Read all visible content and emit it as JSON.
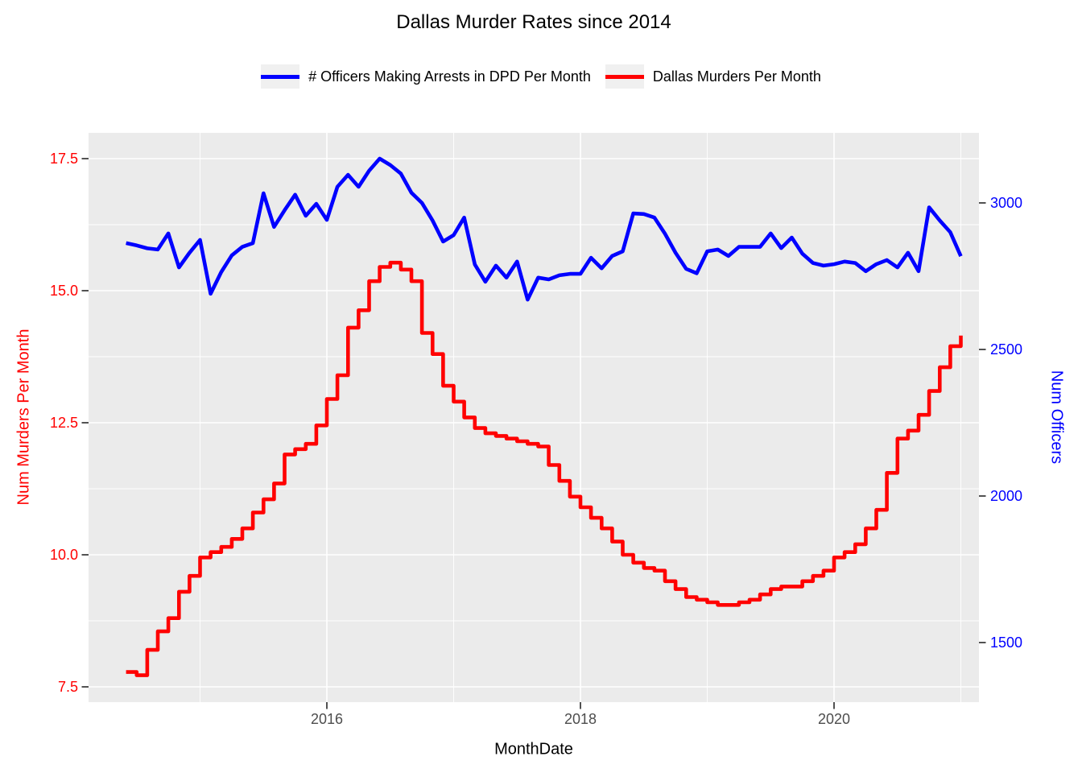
{
  "title": "Dallas Murder Rates since 2014",
  "legend": {
    "officers_label": "# Officers Making Arrests in DPD Per Month",
    "murders_label": "Dallas Murders Per Month"
  },
  "colors": {
    "murders": "#FF0000",
    "officers": "#0000FF",
    "panel_bg": "#EBEBEB",
    "gridline": "#FFFFFF",
    "tick_mark": "#333333",
    "x_tick_text": "#4d4d4d",
    "legend_key_bg": "#F0F0F0"
  },
  "axes": {
    "x": {
      "title": "MonthDate",
      "major_tick_labels": [
        "2016",
        "2018",
        "2020"
      ],
      "major_years": [
        2016,
        2018,
        2020
      ],
      "minor_years": [
        2015,
        2017,
        2019,
        2021
      ]
    },
    "y_left": {
      "title": "Num Murders Per Month",
      "tick_labels": [
        "7.5",
        "10.0",
        "12.5",
        "15.0",
        "17.5"
      ],
      "tick_values": [
        7.5,
        10.0,
        12.5,
        15.0,
        17.5
      ],
      "minor_values": [
        8.75,
        11.25,
        13.75,
        16.25
      ],
      "range": [
        7.2,
        18.0
      ]
    },
    "y_right": {
      "title": "Num Officers",
      "tick_labels": [
        "1500",
        "2000",
        "2500",
        "3000"
      ],
      "tick_values": [
        1500,
        2000,
        2500,
        3000
      ],
      "range": [
        1260,
        3290
      ]
    }
  },
  "chart_data": {
    "type": "line",
    "title": "Dallas Murder Rates since 2014",
    "xlabel": "MonthDate",
    "ylabel_left": "Num Murders Per Month",
    "ylabel_right": "Num Officers",
    "grid": true,
    "legend_position": "top",
    "x": [
      "2014-06",
      "2014-07",
      "2014-08",
      "2014-09",
      "2014-10",
      "2014-11",
      "2014-12",
      "2015-01",
      "2015-02",
      "2015-03",
      "2015-04",
      "2015-05",
      "2015-06",
      "2015-07",
      "2015-08",
      "2015-09",
      "2015-10",
      "2015-11",
      "2015-12",
      "2016-01",
      "2016-02",
      "2016-03",
      "2016-04",
      "2016-05",
      "2016-06",
      "2016-07",
      "2016-08",
      "2016-09",
      "2016-10",
      "2016-11",
      "2016-12",
      "2017-01",
      "2017-02",
      "2017-03",
      "2017-04",
      "2017-05",
      "2017-06",
      "2017-07",
      "2017-08",
      "2017-09",
      "2017-10",
      "2017-11",
      "2017-12",
      "2018-01",
      "2018-02",
      "2018-03",
      "2018-04",
      "2018-05",
      "2018-06",
      "2018-07",
      "2018-08",
      "2018-09",
      "2018-10",
      "2018-11",
      "2018-12",
      "2019-01",
      "2019-02",
      "2019-03",
      "2019-04",
      "2019-05",
      "2019-06",
      "2019-07",
      "2019-08",
      "2019-09",
      "2019-10",
      "2019-11",
      "2019-12",
      "2020-01",
      "2020-02",
      "2020-03",
      "2020-04",
      "2020-05",
      "2020-06",
      "2020-07",
      "2020-08",
      "2020-09",
      "2020-10",
      "2020-11",
      "2020-12",
      "2021-01"
    ],
    "series": [
      {
        "name": "# Officers Making Arrests in DPD Per Month",
        "axis": "right",
        "style": "line",
        "color": "#0000FF",
        "values": [
          2863,
          2855,
          2845,
          2841,
          2896,
          2780,
          2830,
          2874,
          2690,
          2764,
          2821,
          2850,
          2863,
          3033,
          2918,
          2975,
          3028,
          2956,
          2997,
          2942,
          3055,
          3096,
          3055,
          3110,
          3151,
          3129,
          3100,
          3035,
          3000,
          2940,
          2868,
          2890,
          2950,
          2790,
          2731,
          2786,
          2745,
          2800,
          2670,
          2745,
          2739,
          2753,
          2758,
          2758,
          2813,
          2777,
          2819,
          2835,
          2964,
          2962,
          2950,
          2895,
          2830,
          2775,
          2760,
          2835,
          2841,
          2819,
          2850,
          2850,
          2850,
          2896,
          2846,
          2882,
          2827,
          2795,
          2786,
          2791,
          2800,
          2795,
          2767,
          2791,
          2805,
          2780,
          2830,
          2767,
          2985,
          2940,
          2900,
          2818
        ]
      },
      {
        "name": "Dallas Murders Per Month",
        "axis": "left",
        "style": "step",
        "color": "#FF0000",
        "values": [
          7.78,
          7.72,
          8.2,
          8.55,
          8.8,
          9.3,
          9.6,
          9.95,
          10.05,
          10.15,
          10.3,
          10.5,
          10.8,
          11.05,
          11.35,
          11.9,
          12.0,
          12.1,
          12.45,
          12.95,
          13.4,
          14.3,
          14.63,
          15.18,
          15.45,
          15.53,
          15.4,
          15.18,
          14.2,
          13.8,
          13.2,
          12.9,
          12.6,
          12.4,
          12.3,
          12.25,
          12.2,
          12.15,
          12.1,
          12.05,
          11.7,
          11.4,
          11.1,
          10.9,
          10.7,
          10.5,
          10.25,
          10.0,
          9.85,
          9.75,
          9.7,
          9.5,
          9.35,
          9.2,
          9.15,
          9.1,
          9.05,
          9.05,
          9.1,
          9.15,
          9.25,
          9.35,
          9.4,
          9.4,
          9.5,
          9.6,
          9.7,
          9.95,
          10.05,
          10.2,
          10.5,
          10.85,
          11.55,
          12.2,
          12.35,
          12.65,
          13.1,
          13.55,
          13.95,
          14.15
        ]
      }
    ]
  }
}
